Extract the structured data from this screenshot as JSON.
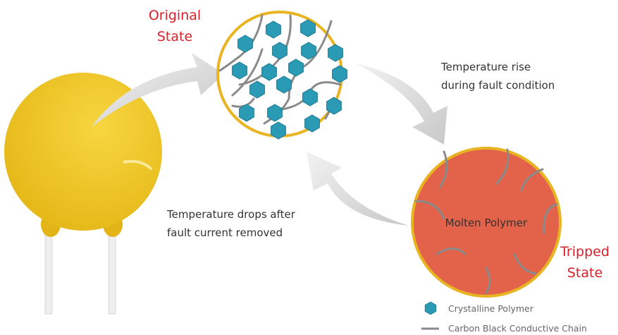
{
  "original_state": [
    "Original",
    "State"
  ],
  "rise_label": [
    "Temperature rise",
    "during fault condition"
  ],
  "molten_label": "Molten Polymer",
  "tripped_state": [
    "Tripped",
    "State"
  ],
  "drop_label": [
    "Temperature drops after",
    "fault current removed"
  ],
  "legend": {
    "crystalline": "Crystalline Polymer",
    "carbon": "Carbon Black Conductive Chain"
  }
}
